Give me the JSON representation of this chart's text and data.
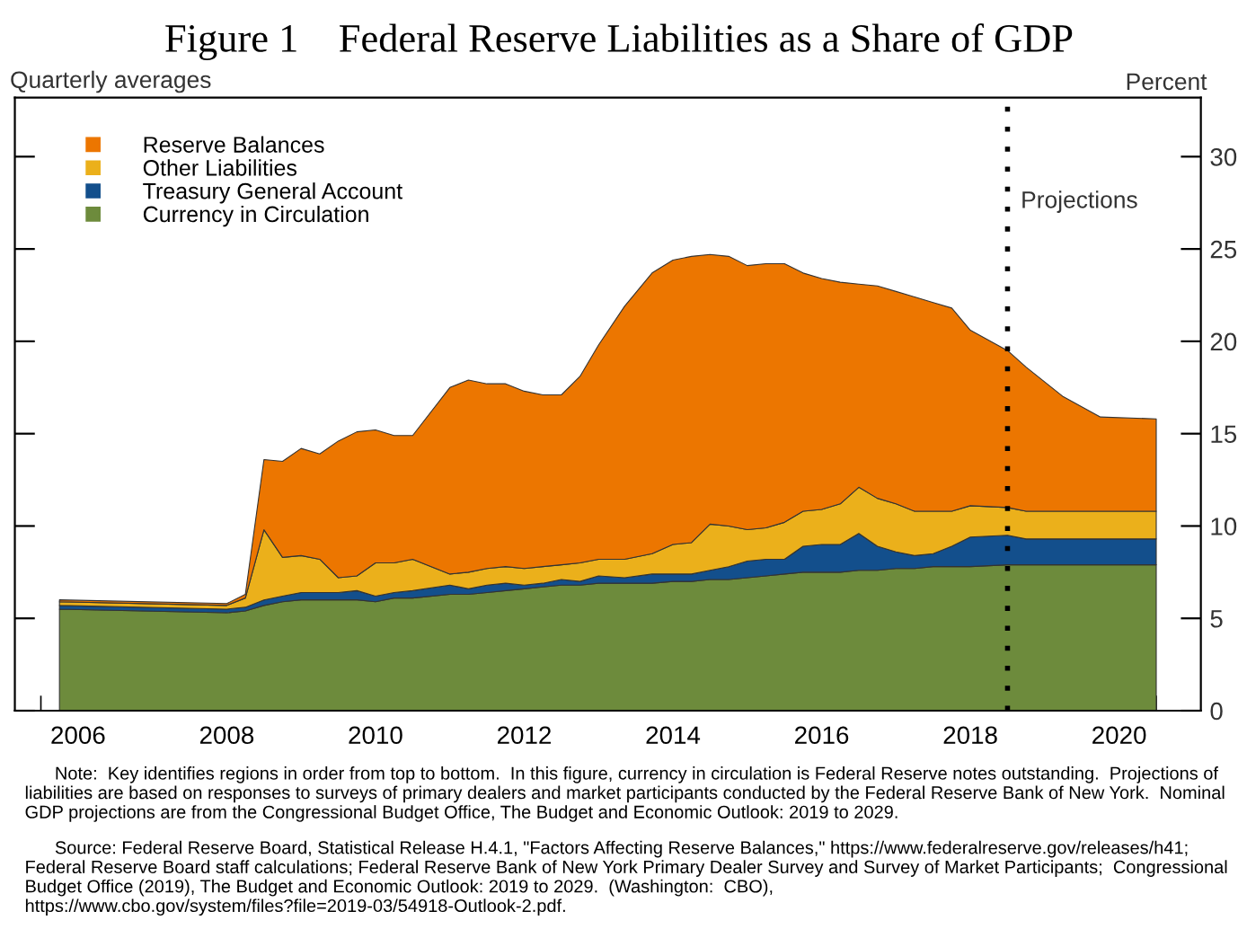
{
  "chart_data": {
    "type": "area",
    "stacked": true,
    "title": "Figure 1    Federal Reserve Liabilities as a Share of GDP",
    "subtitle": "Quarterly averages",
    "ylabel": "Percent",
    "x": [
      2006.25,
      2008.5,
      2008.75,
      2009.0,
      2009.25,
      2009.5,
      2009.75,
      2010.0,
      2010.25,
      2010.5,
      2010.75,
      2011.0,
      2011.5,
      2011.75,
      2012.0,
      2012.25,
      2012.5,
      2012.75,
      2013.0,
      2013.25,
      2013.5,
      2013.85,
      2014.22,
      2014.5,
      2014.75,
      2015.0,
      2015.25,
      2015.5,
      2015.75,
      2016.0,
      2016.25,
      2016.5,
      2016.75,
      2017.0,
      2017.25,
      2017.5,
      2017.75,
      2018.0,
      2018.25,
      2018.5,
      2019.0,
      2019.25,
      2019.75,
      2020.25,
      2021.0
    ],
    "series": [
      {
        "name": "Currency in Circulation",
        "color": "#6d8b3c",
        "values": [
          5.5,
          5.3,
          5.4,
          5.7,
          5.9,
          6.0,
          6.0,
          6.0,
          6.0,
          5.9,
          6.1,
          6.1,
          6.3,
          6.3,
          6.4,
          6.5,
          6.6,
          6.7,
          6.8,
          6.8,
          6.9,
          6.9,
          6.9,
          7.0,
          7.0,
          7.1,
          7.1,
          7.2,
          7.3,
          7.4,
          7.5,
          7.5,
          7.5,
          7.6,
          7.6,
          7.7,
          7.7,
          7.8,
          7.8,
          7.8,
          7.9,
          7.9,
          7.9,
          7.9,
          7.9
        ]
      },
      {
        "name": "Treasury General Account",
        "color": "#134f8c",
        "values": [
          0.2,
          0.2,
          0.2,
          0.3,
          0.3,
          0.4,
          0.4,
          0.4,
          0.5,
          0.3,
          0.3,
          0.4,
          0.5,
          0.3,
          0.4,
          0.4,
          0.2,
          0.2,
          0.3,
          0.2,
          0.4,
          0.3,
          0.5,
          0.4,
          0.4,
          0.5,
          0.7,
          0.9,
          0.9,
          0.8,
          1.4,
          1.5,
          1.5,
          2.0,
          1.3,
          0.9,
          0.7,
          0.7,
          1.1,
          1.6,
          1.6,
          1.4,
          1.4,
          1.4,
          1.4
        ]
      },
      {
        "name": "Other Liabilities",
        "color": "#ebb01b",
        "values": [
          0.2,
          0.2,
          0.5,
          3.8,
          2.1,
          2.0,
          1.8,
          0.8,
          0.8,
          1.8,
          1.6,
          1.7,
          0.6,
          0.9,
          0.9,
          0.9,
          0.9,
          0.9,
          0.8,
          1.0,
          0.9,
          1.0,
          1.1,
          1.6,
          1.7,
          2.5,
          2.2,
          1.7,
          1.7,
          2.0,
          1.9,
          1.9,
          2.2,
          2.5,
          2.6,
          2.6,
          2.4,
          2.3,
          1.9,
          1.7,
          1.5,
          1.5,
          1.5,
          1.5,
          1.5
        ]
      },
      {
        "name": "Reserve Balances",
        "color": "#ec7600",
        "values": [
          0.1,
          0.1,
          0.2,
          3.8,
          5.2,
          5.8,
          5.7,
          7.4,
          7.8,
          7.2,
          6.9,
          6.7,
          10.1,
          10.4,
          10.0,
          9.9,
          9.6,
          9.3,
          9.2,
          10.1,
          11.6,
          13.7,
          15.2,
          15.4,
          15.5,
          14.6,
          14.6,
          14.3,
          14.3,
          14.0,
          12.9,
          12.5,
          12.0,
          11.0,
          11.5,
          11.5,
          11.6,
          11.3,
          11.0,
          9.5,
          8.5,
          7.8,
          6.2,
          5.1,
          5.0
        ]
      }
    ],
    "xlim": [
      2005.65,
      2021.6
    ],
    "xticks": [
      {
        "value": 2006,
        "label": null
      },
      {
        "value": 2006.5,
        "label": "2006"
      },
      {
        "value": 2007,
        "label": null
      },
      {
        "value": 2008,
        "label": null
      },
      {
        "value": 2008.5,
        "label": "2008"
      },
      {
        "value": 2009,
        "label": null
      },
      {
        "value": 2010,
        "label": null
      },
      {
        "value": 2010.5,
        "label": "2010"
      },
      {
        "value": 2011,
        "label": null
      },
      {
        "value": 2012,
        "label": null
      },
      {
        "value": 2012.5,
        "label": "2012"
      },
      {
        "value": 2013,
        "label": null
      },
      {
        "value": 2014,
        "label": null
      },
      {
        "value": 2014.5,
        "label": "2014"
      },
      {
        "value": 2015,
        "label": null
      },
      {
        "value": 2016,
        "label": null
      },
      {
        "value": 2016.5,
        "label": "2016"
      },
      {
        "value": 2017,
        "label": null
      },
      {
        "value": 2018,
        "label": null
      },
      {
        "value": 2018.5,
        "label": "2018"
      },
      {
        "value": 2019,
        "label": null
      },
      {
        "value": 2020,
        "label": null
      },
      {
        "value": 2020.5,
        "label": "2020"
      },
      {
        "value": 2021,
        "label": null
      }
    ],
    "ylim": [
      0,
      33.2
    ],
    "yticks": [
      0,
      5,
      10,
      15,
      20,
      25,
      30
    ],
    "ref_lines": [
      {
        "axis": "x",
        "value": 2019.0,
        "label": "Projections",
        "color": "#000000",
        "line_style": "dotted"
      }
    ],
    "legend": "top left",
    "grid": false,
    "annotations": [
      "Note:  Key identifies regions in order from top to bottom.  In this figure, currency in circulation is Federal Reserve notes outstanding.  Projections of liabilities are based on responses to surveys of primary dealers and market participants conducted by the Federal Reserve Bank of New York.  Nominal GDP projections are from the Congressional Budget Office, The Budget and Economic Outlook: 2019 to 2029.",
      "Source: Federal Reserve Board, Statistical Release H.4.1, \"Factors Affecting Reserve Balances,\" https://www.federalreserve.gov/releases/h41; Federal Reserve Board staff calculations; Federal Reserve Bank of New York Primary Dealer Survey and Survey of Market Participants;  Congressional Budget Office (2019), The Budget and Economic Outlook: 2019 to 2029.  (Washington:  CBO), https://www.cbo.gov/system/files?file=2019-03/54918-Outlook-2.pdf."
    ]
  }
}
